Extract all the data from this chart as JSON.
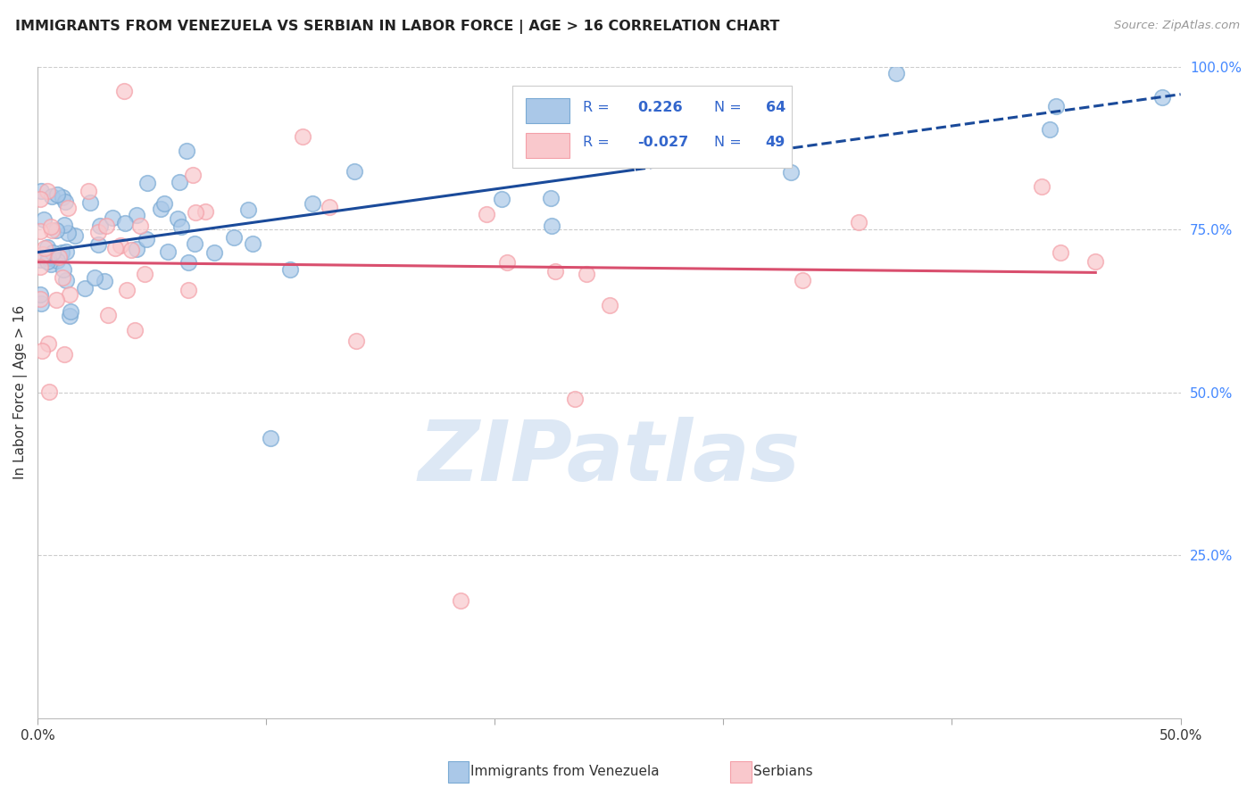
{
  "title": "IMMIGRANTS FROM VENEZUELA VS SERBIAN IN LABOR FORCE | AGE > 16 CORRELATION CHART",
  "source": "Source: ZipAtlas.com",
  "ylabel": "In Labor Force | Age > 16",
  "xlim": [
    0.0,
    0.5
  ],
  "ylim": [
    0.0,
    1.0
  ],
  "right_tick_color": "#4488ff",
  "watermark": "ZIPatlas",
  "watermark_color": "#dde8f5",
  "blue_color": "#7aaad4",
  "pink_color": "#f4a0a8",
  "blue_fill": "#aac8e8",
  "pink_fill": "#f9c8cc",
  "blue_line_color": "#1a4a9a",
  "pink_line_color": "#d94f6e",
  "legend_text_color": "#3366cc",
  "grid_color": "#cccccc",
  "background_color": "#ffffff",
  "title_color": "#222222",
  "source_color": "#999999",
  "ylabel_color": "#333333"
}
